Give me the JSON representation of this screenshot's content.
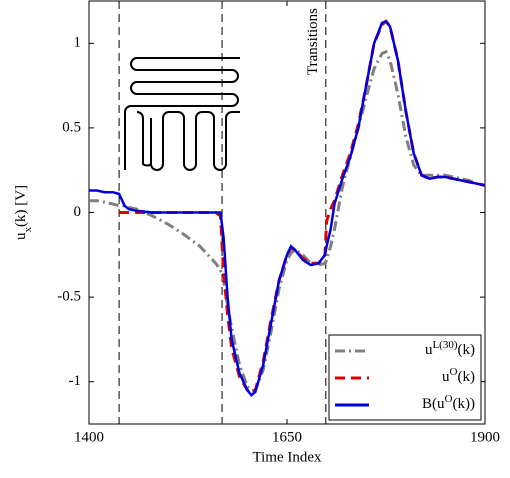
{
  "chart_data": {
    "type": "line",
    "xlabel": "Time Index",
    "ylabel": "u_x(k) [V]",
    "annotation": "Transitions",
    "vlines": [
      1438,
      1568,
      1699
    ],
    "xlim": [
      1400,
      1900
    ],
    "xticks": [
      1400,
      1650,
      1900
    ],
    "ylim": [
      -1.25,
      1.25
    ],
    "yticks": [
      -1,
      -0.5,
      0,
      0.5,
      1
    ],
    "grid": false,
    "legend": "lower right",
    "x": [
      1400,
      1410,
      1420,
      1430,
      1438,
      1445,
      1450,
      1460,
      1480,
      1500,
      1520,
      1540,
      1560,
      1566,
      1570,
      1575,
      1580,
      1590,
      1600,
      1605,
      1610,
      1620,
      1630,
      1640,
      1650,
      1655,
      1660,
      1670,
      1680,
      1690,
      1698,
      1700,
      1705,
      1710,
      1720,
      1730,
      1740,
      1750,
      1760,
      1770,
      1775,
      1780,
      1790,
      1800,
      1810,
      1820,
      1830,
      1840,
      1850,
      1860,
      1870,
      1880,
      1890,
      1900
    ],
    "series": [
      {
        "name": "u^{L(30)}(k)",
        "color": "#808080",
        "dash": "dashdot",
        "values": [
          0.07,
          0.07,
          0.06,
          0.05,
          0.04,
          0.04,
          0.03,
          0.02,
          -0.02,
          -0.07,
          -0.13,
          -0.2,
          -0.3,
          -0.34,
          -0.4,
          -0.55,
          -0.68,
          -0.9,
          -1.03,
          -1.05,
          -1.05,
          -0.93,
          -0.7,
          -0.45,
          -0.28,
          -0.24,
          -0.22,
          -0.25,
          -0.3,
          -0.31,
          -0.3,
          -0.28,
          -0.2,
          -0.1,
          0.15,
          0.33,
          0.5,
          0.68,
          0.85,
          0.94,
          0.95,
          0.9,
          0.7,
          0.45,
          0.28,
          0.22,
          0.22,
          0.22,
          0.22,
          0.21,
          0.2,
          0.19,
          0.17,
          0.16
        ]
      },
      {
        "name": "u^{O}(k)",
        "color": "#e00000",
        "dash": "dashed",
        "values": [
          null,
          null,
          null,
          null,
          0,
          0,
          0,
          0,
          0,
          0,
          0,
          0,
          0,
          -0.02,
          -0.35,
          -0.6,
          -0.8,
          -0.97,
          -1.05,
          -1.07,
          -1.05,
          -0.88,
          -0.63,
          -0.4,
          -0.25,
          -0.21,
          -0.22,
          -0.27,
          -0.3,
          -0.3,
          -0.25,
          -0.05,
          0.02,
          0.07,
          0.22,
          0.35,
          0.52,
          0.75,
          1.0,
          1.11,
          1.13,
          1.1,
          0.9,
          0.6,
          0.35,
          0.22,
          0.2,
          0.21,
          0.21,
          0.2,
          0.19,
          0.18,
          0.17,
          0.16
        ]
      },
      {
        "name": "B(u^{O}(k))",
        "color": "#0000dd",
        "dash": "solid",
        "values": [
          0.13,
          0.13,
          0.12,
          0.12,
          0.11,
          0.04,
          0.02,
          0.01,
          0,
          0,
          0,
          0,
          0,
          0,
          -0.15,
          -0.5,
          -0.75,
          -0.95,
          -1.05,
          -1.08,
          -1.06,
          -0.9,
          -0.65,
          -0.4,
          -0.25,
          -0.2,
          -0.22,
          -0.28,
          -0.31,
          -0.3,
          -0.25,
          -0.2,
          -0.1,
          0.05,
          0.2,
          0.33,
          0.5,
          0.75,
          1.0,
          1.12,
          1.13,
          1.1,
          0.9,
          0.6,
          0.35,
          0.22,
          0.2,
          0.21,
          0.21,
          0.2,
          0.19,
          0.18,
          0.17,
          0.16
        ]
      }
    ]
  }
}
